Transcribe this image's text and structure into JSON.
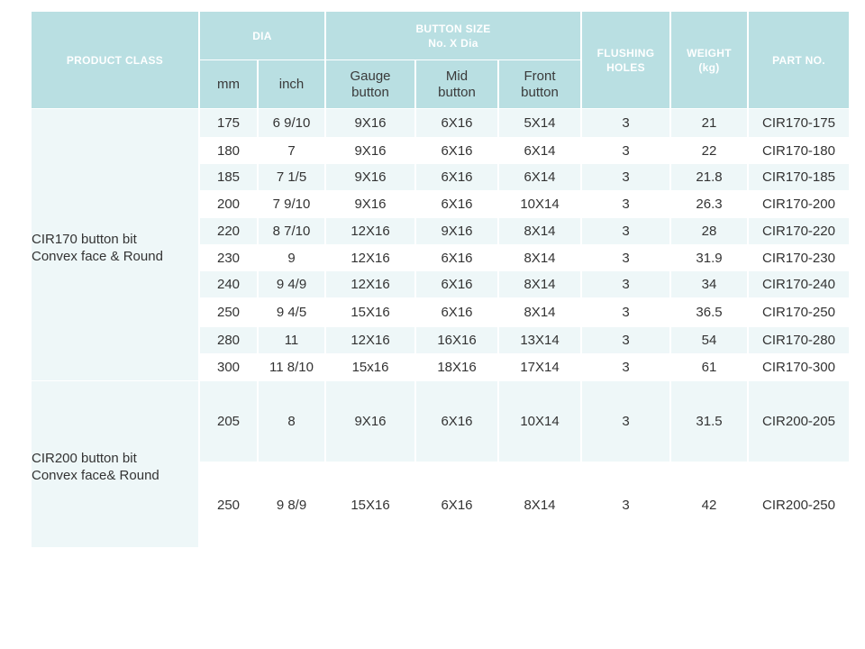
{
  "header": {
    "product_class": "PRODUCT CLASS",
    "dia": "DIA",
    "button_size": "BUTTON SIZE",
    "button_size_sub": "No. X Dia",
    "flushing_holes_1": "FLUSHING",
    "flushing_holes_2": "HOLES",
    "weight_1": "WEIGHT",
    "weight_2": "(kg)",
    "part_no": "PART NO.",
    "mm": "mm",
    "inch": "inch",
    "gauge_1": "Gauge",
    "gauge_2": "button",
    "mid_1": "Mid",
    "mid_2": "button",
    "front_1": "Front",
    "front_2": "button"
  },
  "groups": [
    {
      "line1": "CIR170 button bit",
      "line2": "Convex face & Round"
    },
    {
      "line1": "CIR200 button bit",
      "line2": "Convex face& Round"
    }
  ],
  "rows": [
    {
      "mm": "175",
      "inch": "6 9/10",
      "gauge": "9X16",
      "mid": "6X16",
      "front": "5X14",
      "holes": "3",
      "weight": "21",
      "part": "CIR170-175"
    },
    {
      "mm": "180",
      "inch": "7",
      "gauge": "9X16",
      "mid": "6X16",
      "front": "6X14",
      "holes": "3",
      "weight": "22",
      "part": "CIR170-180"
    },
    {
      "mm": "185",
      "inch": "7 1/5",
      "gauge": "9X16",
      "mid": "6X16",
      "front": "6X14",
      "holes": "3",
      "weight": "21.8",
      "part": "CIR170-185"
    },
    {
      "mm": "200",
      "inch": "7 9/10",
      "gauge": "9X16",
      "mid": "6X16",
      "front": "10X14",
      "holes": "3",
      "weight": "26.3",
      "part": "CIR170-200"
    },
    {
      "mm": "220",
      "inch": "8 7/10",
      "gauge": "12X16",
      "mid": "9X16",
      "front": "8X14",
      "holes": "3",
      "weight": "28",
      "part": "CIR170-220"
    },
    {
      "mm": "230",
      "inch": "9",
      "gauge": "12X16",
      "mid": "6X16",
      "front": "8X14",
      "holes": "3",
      "weight": "31.9",
      "part": "CIR170-230"
    },
    {
      "mm": "240",
      "inch": "9 4/9",
      "gauge": "12X16",
      "mid": "6X16",
      "front": "8X14",
      "holes": "3",
      "weight": "34",
      "part": "CIR170-240"
    },
    {
      "mm": "250",
      "inch": "9 4/5",
      "gauge": "15X16",
      "mid": "6X16",
      "front": "8X14",
      "holes": "3",
      "weight": "36.5",
      "part": "CIR170-250"
    },
    {
      "mm": "280",
      "inch": "11",
      "gauge": "12X16",
      "mid": "16X16",
      "front": "13X14",
      "holes": "3",
      "weight": "54",
      "part": "CIR170-280"
    },
    {
      "mm": "300",
      "inch": "11 8/10",
      "gauge": "15x16",
      "mid": "18X16",
      "front": "17X14",
      "holes": "3",
      "weight": "61",
      "part": "CIR170-300"
    },
    {
      "mm": "205",
      "inch": "8",
      "gauge": "9X16",
      "mid": "6X16",
      "front": "10X14",
      "holes": "3",
      "weight": "31.5",
      "part": "CIR200-205"
    },
    {
      "mm": "250",
      "inch": "9 8/9",
      "gauge": "15X16",
      "mid": "6X16",
      "front": "8X14",
      "holes": "3",
      "weight": "42",
      "part": "CIR200-250"
    }
  ]
}
